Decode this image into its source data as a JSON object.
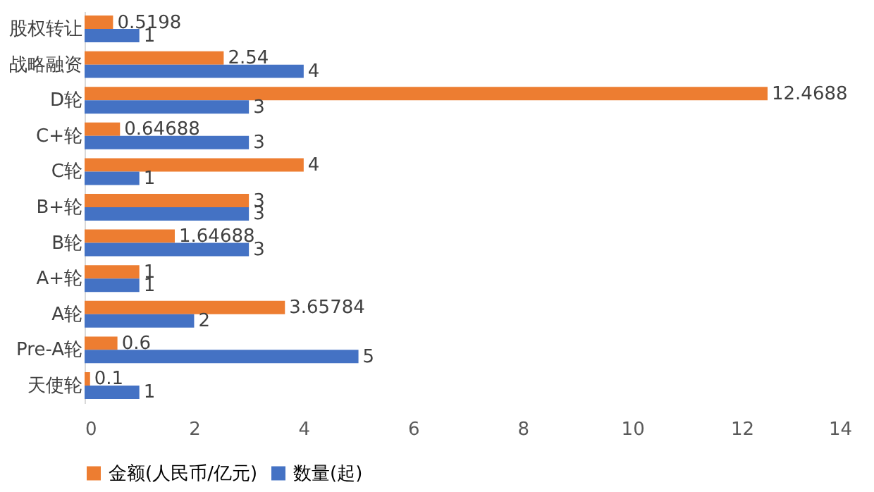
{
  "chart_data": {
    "type": "bar",
    "orientation": "horizontal",
    "categories": [
      "股权转让",
      "战略融资",
      "D轮",
      "C+轮",
      "C轮",
      "B+轮",
      "B轮",
      "A+轮",
      "A轮",
      "Pre-A轮",
      "天使轮"
    ],
    "series": [
      {
        "name": "金额(人民币/亿元)",
        "color": "#ed7d31",
        "values": [
          0.5198,
          2.54,
          12.4688,
          0.64688,
          4,
          3,
          1.64688,
          1,
          3.65784,
          0.6,
          0.1
        ]
      },
      {
        "name": "数量(起)",
        "color": "#4472c4",
        "values": [
          1,
          4,
          3,
          3,
          1,
          3,
          3,
          1,
          2,
          5,
          1
        ]
      }
    ],
    "xlim": [
      0,
      14
    ],
    "xticks": [
      0,
      2,
      4,
      6,
      8,
      10,
      12,
      14
    ],
    "grid": false,
    "legend": "bottom",
    "data_labels": true
  }
}
